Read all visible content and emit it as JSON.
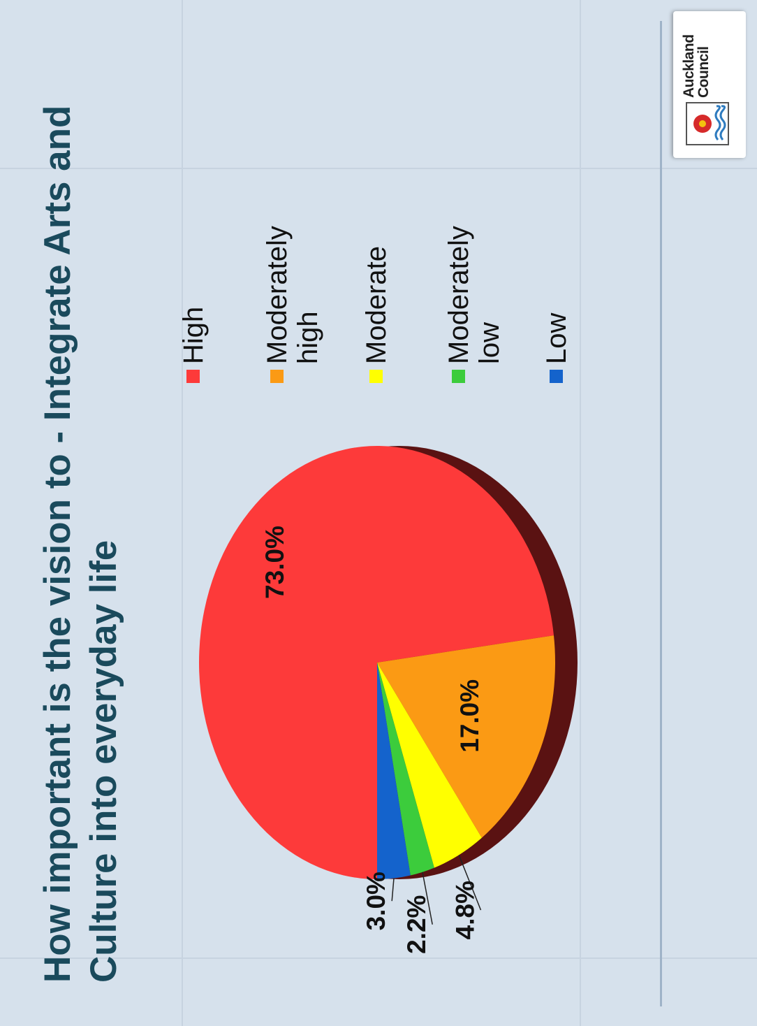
{
  "slide": {
    "title": "How important is the vision to - Integrate Arts and Culture into everyday life"
  },
  "logo": {
    "line1": "Auckland",
    "line2": "Council"
  },
  "colors": {
    "background": "#d6e1ec",
    "title": "#1a4a5c",
    "high": "#fd3a3a",
    "moderately_high": "#fb9a14",
    "moderate": "#ffff00",
    "moderately_low": "#3ccc3c",
    "low": "#1463cc"
  },
  "chart_data": {
    "type": "pie",
    "title": "How important is the vision to - Integrate Arts and Culture into everyday life",
    "legend_position": "right",
    "slices": [
      {
        "label": "High",
        "value": 73.0,
        "value_label": "73.0%",
        "color": "#fd3a3a"
      },
      {
        "label": "Moderately high",
        "value": 17.0,
        "value_label": "17.0%",
        "color": "#fb9a14"
      },
      {
        "label": "Moderate",
        "value": 4.8,
        "value_label": "4.8%",
        "color": "#ffff00"
      },
      {
        "label": "Moderately low",
        "value": 2.2,
        "value_label": "2.2%",
        "color": "#3ccc3c"
      },
      {
        "label": "Low",
        "value": 3.0,
        "value_label": "3.0%",
        "color": "#1463cc"
      }
    ]
  }
}
